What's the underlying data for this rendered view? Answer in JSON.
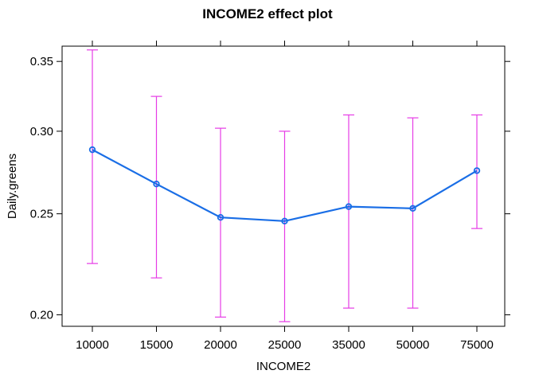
{
  "chart_data": {
    "type": "line",
    "title": "INCOME2 effect plot",
    "xlabel": "INCOME2",
    "ylabel": "Daily.greens",
    "categories": [
      "10000",
      "15000",
      "20000",
      "25000",
      "35000",
      "50000",
      "75000"
    ],
    "yticks": [
      "0.20",
      "0.25",
      "0.30",
      "0.35"
    ],
    "ylim": [
      0.195,
      0.362
    ],
    "log_scale_y": true,
    "grid": false,
    "series": [
      {
        "values": [
          0.288,
          0.267,
          0.248,
          0.246,
          0.254,
          0.253,
          0.275
        ],
        "lower": [
          0.224,
          0.217,
          0.199,
          0.197,
          0.203,
          0.203,
          0.242
        ],
        "upper": [
          0.359,
          0.324,
          0.302,
          0.3,
          0.311,
          0.309,
          0.311
        ]
      }
    ],
    "colors": {
      "line": "#1a6ee6",
      "errorbar": "#e63ce6",
      "frame": "#000000"
    }
  }
}
